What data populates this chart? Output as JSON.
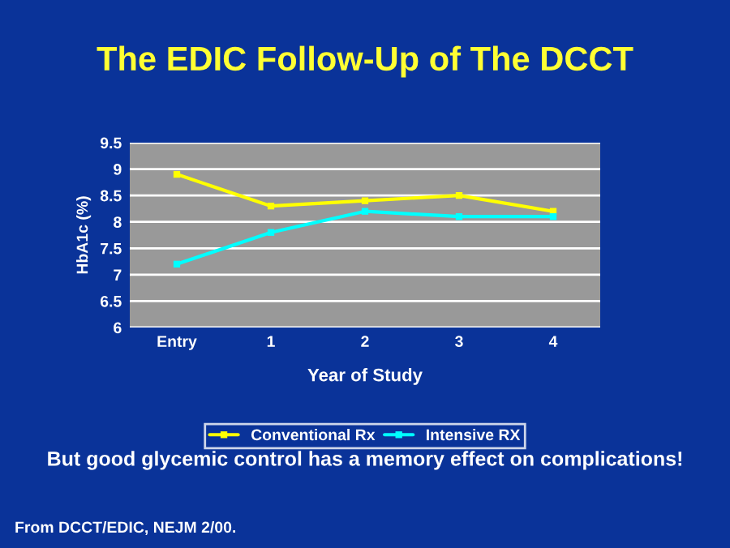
{
  "chart_data": {
    "type": "line",
    "title": "The EDIC Follow-Up of The DCCT",
    "xlabel": "Year of Study",
    "ylabel": "HbA1c (%)",
    "categories": [
      "Entry",
      "1",
      "2",
      "3",
      "4"
    ],
    "series": [
      {
        "name": "Conventional Rx",
        "color": "#ffff00",
        "values": [
          8.9,
          8.3,
          8.4,
          8.5,
          8.2
        ]
      },
      {
        "name": "Intensive RX",
        "color": "#00ffff",
        "values": [
          7.2,
          7.8,
          8.2,
          8.1,
          8.1
        ]
      }
    ],
    "ylim": [
      6,
      9.5
    ],
    "yticks": [
      6,
      6.5,
      7,
      7.5,
      8,
      8.5,
      9,
      9.5
    ],
    "grid": "y",
    "legend": "bottom",
    "marker": "square",
    "line_style": "solid",
    "annotations": [
      "But good glycemic control has a memory effect on complications!",
      "From DCCT/EDIC, NEJM 2/00."
    ]
  }
}
